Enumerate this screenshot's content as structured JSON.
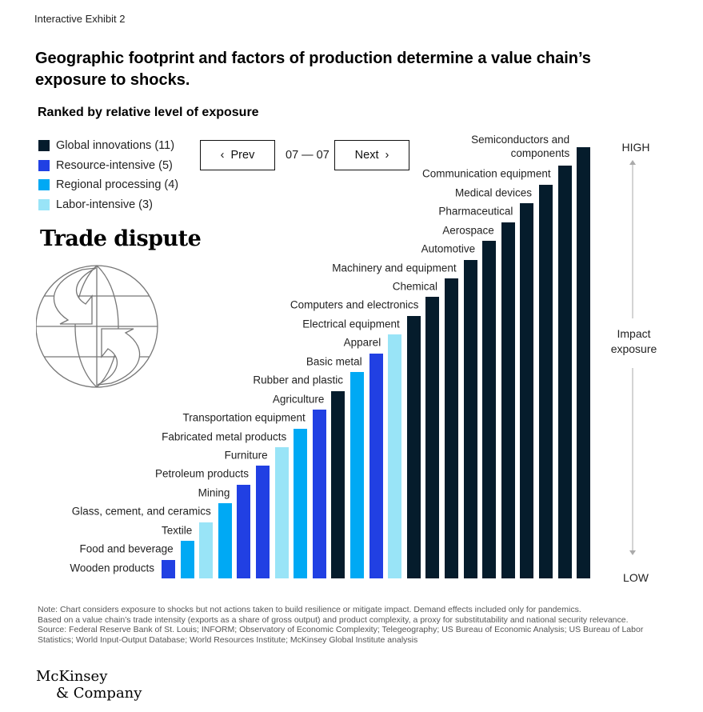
{
  "header": {
    "exhibit": "Interactive Exhibit 2",
    "title": "Geographic footprint and factors of production determine a value chain’s exposure to shocks.",
    "subtitle": "Ranked by relative level of exposure"
  },
  "legend": [
    {
      "label": "Global innovations (11)",
      "color": "#051c2c"
    },
    {
      "label": "Resource-intensive (5)",
      "color": "#2140e3"
    },
    {
      "label": "Regional processing (4)",
      "color": "#00a9f4"
    },
    {
      "label": "Labor-intensive (3)",
      "color": "#99e4f7"
    }
  ],
  "pager": {
    "prev_label": "Prev",
    "next_label": "Next",
    "position": "07 — 07",
    "prev_icon": "chevron-left-icon",
    "next_icon": "chevron-right-icon"
  },
  "scenario": {
    "title": "Trade dispute",
    "icon": "globe-arrows-icon"
  },
  "axis": {
    "high": "HIGH",
    "low": "LOW",
    "label": "Impact exposure"
  },
  "chart_data": {
    "type": "bar",
    "title": "Ranked by relative level of exposure",
    "ylabel": "Impact exposure",
    "ylabel_scale": [
      "LOW",
      "HIGH"
    ],
    "categories": [
      "Wooden products",
      "Food and beverage",
      "Textile",
      "Glass, cement, and ceramics",
      "Mining",
      "Petroleum products",
      "Furniture",
      "Fabricated metal products",
      "Transportation equipment",
      "Agriculture",
      "Rubber and plastic",
      "Basic metal",
      "Apparel",
      "Electrical equipment",
      "Computers and electronics",
      "Chemical",
      "Machinery and equipment",
      "Automotive",
      "Aerospace",
      "Pharmaceutical",
      "Medical devices",
      "Communication equipment",
      "Semiconductors and components"
    ],
    "values": [
      1,
      2,
      3,
      4,
      5,
      6,
      7,
      8,
      9,
      10,
      11,
      12,
      13,
      14,
      15,
      16,
      17,
      18,
      19,
      20,
      21,
      22,
      23
    ],
    "groups": [
      "Resource-intensive",
      "Regional processing",
      "Labor-intensive",
      "Regional processing",
      "Resource-intensive",
      "Resource-intensive",
      "Labor-intensive",
      "Regional processing",
      "Resource-intensive",
      "Global innovations",
      "Regional processing",
      "Resource-intensive",
      "Labor-intensive",
      "Global innovations",
      "Global innovations",
      "Global innovations",
      "Global innovations",
      "Global innovations",
      "Global innovations",
      "Global innovations",
      "Global innovations",
      "Global innovations",
      "Global innovations"
    ],
    "grid": false,
    "legend_position": "top-left"
  },
  "notes": [
    "Note: Chart considers exposure to shocks but not actions taken to build resilience or mitigate impact. Demand effects included only for pandemics.",
    "Based on a value chain’s trade intensity (exports as a share of gross output) and product complexity, a proxy for substitutability and national security relevance.",
    "Source: Federal Reserve Bank of St. Louis; INFORM; Observatory of Economic Complexity; Telegeography; US Bureau of Economic Analysis; US Bureau of Labor Statistics; World Input-Output Database; World Resources Institute; McKinsey Global Institute analysis"
  ],
  "logo": {
    "line1": "McKinsey",
    "line2": "& Company"
  }
}
